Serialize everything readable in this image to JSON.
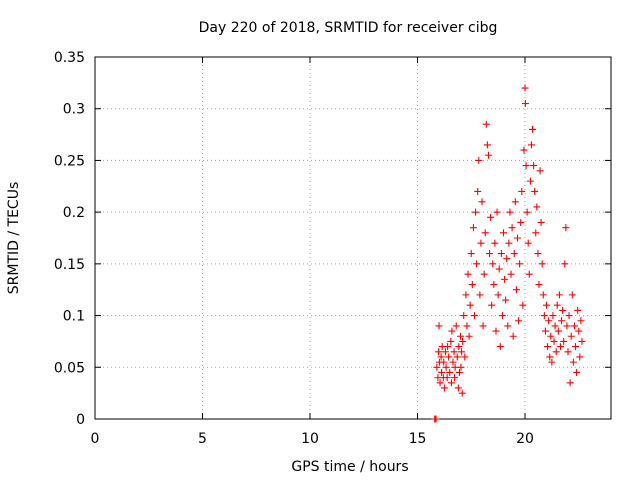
{
  "chart_data": {
    "type": "scatter",
    "title": "Day 220 of 2018, SRMTID for receiver cibg",
    "xlabel": "GPS time / hours",
    "ylabel": "SRMTID / TECUs",
    "xlim": [
      0,
      24
    ],
    "ylim": [
      0,
      0.35
    ],
    "xticks": [
      "0",
      "5",
      "10",
      "15",
      "20"
    ],
    "yticks": [
      "0",
      "0.05",
      "0.1",
      "0.15",
      "0.2",
      "0.25",
      "0.3",
      "0.35"
    ],
    "grid": true,
    "marker": "+",
    "color": "#ff0000",
    "series": [
      {
        "points": [
          [
            15.8,
            0.0
          ],
          [
            15.82,
            0.0
          ],
          [
            15.84,
            0.0
          ],
          [
            15.86,
            0.0
          ],
          [
            15.9,
            0.05
          ],
          [
            15.95,
            0.04
          ],
          [
            15.98,
            0.065
          ],
          [
            16.0,
            0.09
          ],
          [
            16.02,
            0.055
          ],
          [
            16.05,
            0.035
          ],
          [
            16.1,
            0.06
          ],
          [
            16.12,
            0.045
          ],
          [
            16.15,
            0.07
          ],
          [
            16.2,
            0.04
          ],
          [
            16.22,
            0.055
          ],
          [
            16.25,
            0.03
          ],
          [
            16.3,
            0.065
          ],
          [
            16.33,
            0.05
          ],
          [
            16.38,
            0.04
          ],
          [
            16.4,
            0.07
          ],
          [
            16.45,
            0.06
          ],
          [
            16.5,
            0.045
          ],
          [
            16.55,
            0.075
          ],
          [
            16.58,
            0.035
          ],
          [
            16.6,
            0.085
          ],
          [
            16.65,
            0.055
          ],
          [
            16.7,
            0.065
          ],
          [
            16.72,
            0.04
          ],
          [
            16.75,
            0.05
          ],
          [
            16.8,
            0.09
          ],
          [
            16.85,
            0.06
          ],
          [
            16.9,
            0.03
          ],
          [
            16.92,
            0.07
          ],
          [
            16.95,
            0.045
          ],
          [
            17.0,
            0.08
          ],
          [
            17.02,
            0.05
          ],
          [
            17.05,
            0.065
          ],
          [
            17.08,
            0.025
          ],
          [
            17.1,
            0.075
          ],
          [
            17.15,
            0.1
          ],
          [
            17.2,
            0.06
          ],
          [
            17.25,
            0.12
          ],
          [
            17.3,
            0.09
          ],
          [
            17.35,
            0.14
          ],
          [
            17.4,
            0.08
          ],
          [
            17.45,
            0.11
          ],
          [
            17.5,
            0.16
          ],
          [
            17.55,
            0.13
          ],
          [
            17.6,
            0.185
          ],
          [
            17.65,
            0.1
          ],
          [
            17.7,
            0.2
          ],
          [
            17.75,
            0.15
          ],
          [
            17.8,
            0.22
          ],
          [
            17.85,
            0.25
          ],
          [
            17.9,
            0.12
          ],
          [
            17.95,
            0.17
          ],
          [
            18.0,
            0.21
          ],
          [
            18.05,
            0.09
          ],
          [
            18.1,
            0.14
          ],
          [
            18.15,
            0.18
          ],
          [
            18.2,
            0.285
          ],
          [
            18.25,
            0.265
          ],
          [
            18.3,
            0.255
          ],
          [
            18.35,
            0.16
          ],
          [
            18.4,
            0.195
          ],
          [
            18.45,
            0.11
          ],
          [
            18.5,
            0.15
          ],
          [
            18.55,
            0.13
          ],
          [
            18.6,
            0.17
          ],
          [
            18.65,
            0.085
          ],
          [
            18.7,
            0.2
          ],
          [
            18.75,
            0.12
          ],
          [
            18.8,
            0.145
          ],
          [
            18.85,
            0.07
          ],
          [
            18.9,
            0.16
          ],
          [
            18.95,
            0.1
          ],
          [
            19.0,
            0.18
          ],
          [
            19.05,
            0.135
          ],
          [
            19.1,
            0.115
          ],
          [
            19.15,
            0.155
          ],
          [
            19.2,
            0.09
          ],
          [
            19.25,
            0.17
          ],
          [
            19.3,
            0.2
          ],
          [
            19.35,
            0.14
          ],
          [
            19.4,
            0.185
          ],
          [
            19.45,
            0.08
          ],
          [
            19.5,
            0.16
          ],
          [
            19.55,
            0.21
          ],
          [
            19.6,
            0.125
          ],
          [
            19.65,
            0.175
          ],
          [
            19.7,
            0.095
          ],
          [
            19.75,
            0.15
          ],
          [
            19.8,
            0.19
          ],
          [
            19.85,
            0.22
          ],
          [
            19.9,
            0.11
          ],
          [
            19.95,
            0.26
          ],
          [
            20.0,
            0.32
          ],
          [
            20.02,
            0.305
          ],
          [
            20.05,
            0.245
          ],
          [
            20.1,
            0.2
          ],
          [
            20.15,
            0.17
          ],
          [
            20.2,
            0.14
          ],
          [
            20.25,
            0.23
          ],
          [
            20.3,
            0.265
          ],
          [
            20.35,
            0.28
          ],
          [
            20.4,
            0.245
          ],
          [
            20.45,
            0.22
          ],
          [
            20.5,
            0.18
          ],
          [
            20.55,
            0.205
          ],
          [
            20.6,
            0.16
          ],
          [
            20.65,
            0.13
          ],
          [
            20.7,
            0.24
          ],
          [
            20.75,
            0.19
          ],
          [
            20.8,
            0.15
          ],
          [
            20.85,
            0.12
          ],
          [
            20.9,
            0.1
          ],
          [
            20.95,
            0.085
          ],
          [
            21.0,
            0.11
          ],
          [
            21.05,
            0.07
          ],
          [
            21.1,
            0.095
          ],
          [
            21.15,
            0.06
          ],
          [
            21.2,
            0.08
          ],
          [
            21.25,
            0.055
          ],
          [
            21.3,
            0.1
          ],
          [
            21.35,
            0.075
          ],
          [
            21.4,
            0.09
          ],
          [
            21.45,
            0.065
          ],
          [
            21.5,
            0.11
          ],
          [
            21.55,
            0.085
          ],
          [
            21.6,
            0.12
          ],
          [
            21.65,
            0.07
          ],
          [
            21.7,
            0.095
          ],
          [
            21.75,
            0.105
          ],
          [
            21.8,
            0.075
          ],
          [
            21.85,
            0.15
          ],
          [
            21.9,
            0.185
          ],
          [
            21.95,
            0.09
          ],
          [
            22.0,
            0.065
          ],
          [
            22.05,
            0.1
          ],
          [
            22.1,
            0.035
          ],
          [
            22.15,
            0.08
          ],
          [
            22.2,
            0.12
          ],
          [
            22.25,
            0.055
          ],
          [
            22.3,
            0.09
          ],
          [
            22.35,
            0.07
          ],
          [
            22.4,
            0.045
          ],
          [
            22.45,
            0.105
          ],
          [
            22.5,
            0.085
          ],
          [
            22.55,
            0.06
          ],
          [
            22.6,
            0.095
          ],
          [
            22.65,
            0.075
          ]
        ]
      }
    ]
  }
}
